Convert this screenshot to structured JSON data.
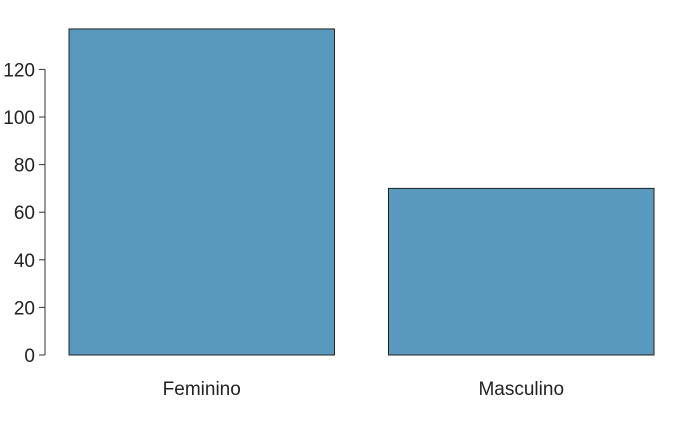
{
  "chart_data": {
    "type": "bar",
    "categories": [
      "Feminino",
      "Masculino"
    ],
    "values": [
      137,
      70
    ],
    "title": "",
    "xlabel": "",
    "ylabel": "",
    "ylim": [
      0,
      137
    ],
    "yticks": [
      0,
      20,
      40,
      60,
      80,
      100,
      120
    ],
    "bar_color": "#5899bd",
    "bar_outline_color": "#222222",
    "grid": false,
    "legend": "none"
  }
}
